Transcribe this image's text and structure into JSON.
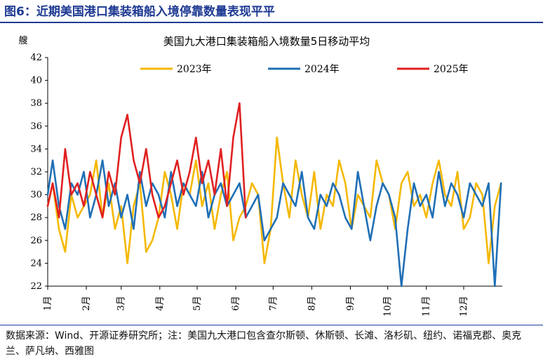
{
  "figure_title": "图6：近期美国港口集装箱船入境停靠数量表现平平",
  "source_note": "数据来源：Wind、开源证券研究所；注：美国九大港口包含查尔斯顿、休斯顿、长滩、洛杉矶、纽约、诺福克郡、奥克兰、萨凡纳、西雅图",
  "chart_data": {
    "type": "line",
    "title": "美国九大港口集装箱船入境数量5日移动平均",
    "ylabel": "艘",
    "ylim": [
      22,
      42
    ],
    "yticks": [
      22,
      24,
      26,
      28,
      30,
      32,
      34,
      36,
      38,
      40,
      42
    ],
    "xlim": [
      1,
      366
    ],
    "month_labels": [
      "1月",
      "2月",
      "3月",
      "4月",
      "5月",
      "6月",
      "7月",
      "8月",
      "9月",
      "10月",
      "11月",
      "12月"
    ],
    "month_start_day": [
      1,
      32,
      60,
      91,
      121,
      152,
      182,
      213,
      244,
      274,
      305,
      335
    ],
    "legend_position": "top",
    "series": [
      {
        "name": "2023年",
        "color": "#f5b800",
        "x": [
          1,
          5,
          10,
          15,
          20,
          25,
          30,
          35,
          40,
          45,
          50,
          55,
          60,
          65,
          70,
          75,
          80,
          85,
          90,
          95,
          100,
          105,
          110,
          115,
          120,
          125,
          130,
          135,
          140,
          145,
          150,
          155,
          160,
          165,
          170,
          175,
          180,
          185,
          190,
          195,
          200,
          205,
          210,
          215,
          220,
          225,
          230,
          235,
          240,
          245,
          250,
          255,
          260,
          265,
          270,
          275,
          280,
          285,
          290,
          295,
          300,
          305,
          310,
          315,
          320,
          325,
          330,
          335,
          340,
          345,
          350,
          355,
          360,
          365
        ],
        "values": [
          29,
          31,
          27,
          25,
          30,
          28,
          29,
          30,
          33,
          28,
          31,
          27,
          29,
          24,
          29,
          31,
          25,
          26,
          28,
          32,
          30,
          27,
          31,
          30,
          33,
          29,
          31,
          27,
          30,
          32,
          26,
          28,
          29,
          31,
          30,
          24,
          27,
          35,
          31,
          28,
          33,
          30,
          28,
          32,
          27,
          30,
          29,
          33,
          31,
          27,
          30,
          29,
          28,
          33,
          31,
          30,
          27,
          31,
          32,
          29,
          30,
          28,
          31,
          33,
          30,
          29,
          32,
          27,
          28,
          31,
          30,
          24,
          29,
          31
        ]
      },
      {
        "name": "2024年",
        "color": "#1f6fb6",
        "x": [
          1,
          5,
          10,
          15,
          20,
          25,
          30,
          35,
          40,
          45,
          50,
          55,
          60,
          65,
          70,
          75,
          80,
          85,
          90,
          95,
          100,
          105,
          110,
          115,
          120,
          125,
          130,
          135,
          140,
          145,
          150,
          155,
          160,
          165,
          170,
          175,
          180,
          185,
          190,
          195,
          200,
          205,
          210,
          215,
          220,
          225,
          230,
          235,
          240,
          245,
          250,
          255,
          260,
          265,
          270,
          275,
          280,
          285,
          290,
          295,
          300,
          305,
          310,
          315,
          320,
          325,
          330,
          335,
          340,
          345,
          350,
          355,
          360,
          365
        ],
        "values": [
          30,
          33,
          29,
          27,
          31,
          30,
          32,
          28,
          30,
          33,
          29,
          31,
          28,
          30,
          27,
          32,
          29,
          31,
          30,
          28,
          32,
          29,
          31,
          30,
          29,
          32,
          28,
          30,
          31,
          29,
          30,
          31,
          28,
          29,
          30,
          26,
          27,
          28,
          31,
          30,
          29,
          32,
          28,
          27,
          30,
          29,
          31,
          30,
          28,
          27,
          32,
          29,
          26,
          29,
          31,
          30,
          28,
          22,
          27,
          31,
          29,
          30,
          28,
          32,
          29,
          31,
          30,
          28,
          31,
          30,
          29,
          31,
          22,
          31
        ]
      },
      {
        "name": "2025年",
        "color": "#e02020",
        "x": [
          1,
          5,
          10,
          15,
          20,
          25,
          30,
          35,
          40,
          45,
          50,
          55,
          60,
          65,
          70,
          75,
          80,
          85,
          90,
          95,
          100,
          105,
          110,
          115,
          120,
          125,
          130,
          135,
          140,
          145,
          150,
          155,
          160
        ],
        "values": [
          29,
          31,
          28,
          34,
          30,
          31,
          29,
          32,
          30,
          28,
          32,
          30,
          35,
          37,
          33,
          31,
          34,
          30,
          28,
          29,
          31,
          33,
          30,
          32,
          35,
          31,
          33,
          30,
          34,
          29,
          35,
          38,
          28
        ]
      }
    ]
  }
}
